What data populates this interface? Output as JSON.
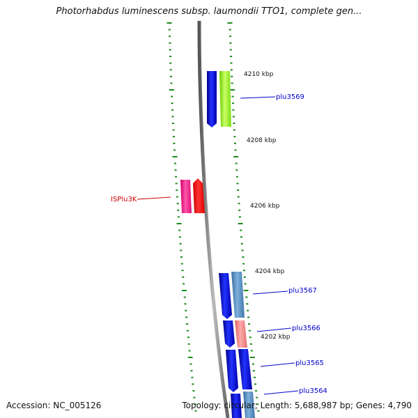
{
  "title": "Photorhabdus luminescens subsp. laumondii TTO1, complete gen...",
  "accession": "Accession: NC_005126",
  "summary": "Topology: circular; Length: 5,688,987 bp; Genes: 4,790",
  "ruler": [
    {
      "label": "4210 kbp"
    },
    {
      "label": "4208 kbp"
    },
    {
      "label": "4206 kbp"
    },
    {
      "label": "4204 kbp"
    },
    {
      "label": "4202 kbp"
    }
  ],
  "genes": [
    {
      "label": "plu3569",
      "color": "#0000cc"
    },
    {
      "label": "ISPlu3K",
      "color": "#cc0000"
    },
    {
      "label": "plu3567",
      "color": "#0000cc"
    },
    {
      "label": "plu3566",
      "color": "#0000cc"
    },
    {
      "label": "plu3565",
      "color": "#0000cc"
    },
    {
      "label": "plu3564",
      "color": "#0000cc"
    }
  ],
  "colors": {
    "backbone": "#7a7a7a",
    "tick": "#1a8a1a",
    "cds_blue": "#0000e6",
    "cds_green": "#99ff33",
    "cds_magenta": "#ff1493",
    "cds_red": "#ff1a1a",
    "cds_steel": "#4682b4",
    "cds_pink": "#f08080"
  }
}
